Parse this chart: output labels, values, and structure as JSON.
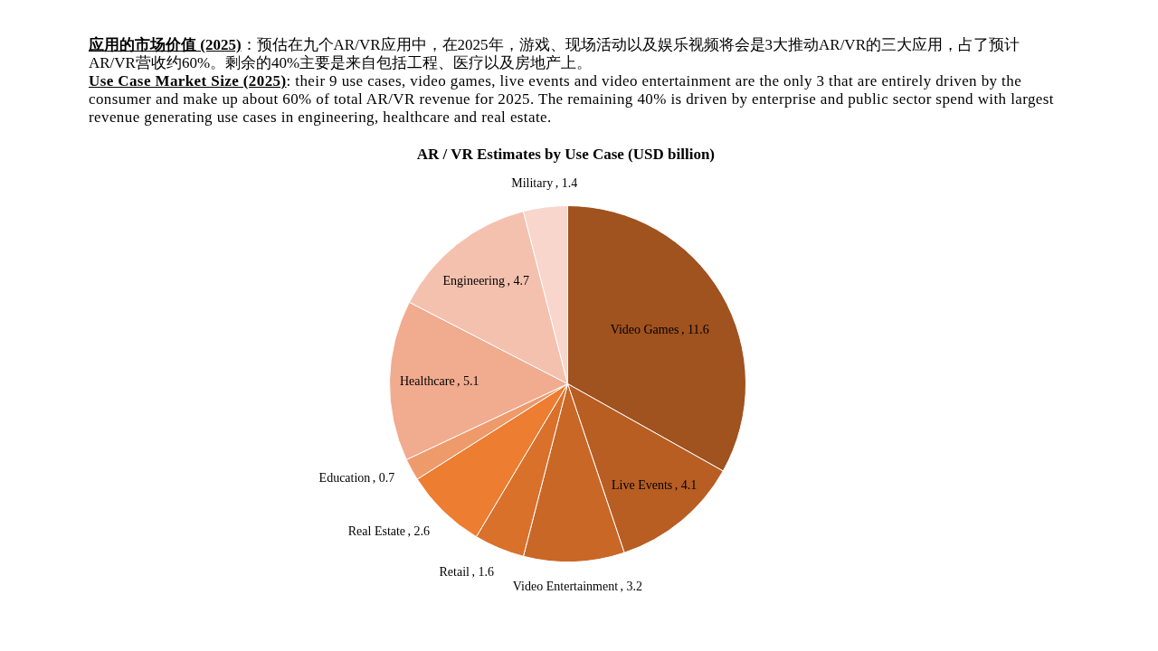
{
  "chart_data": {
    "type": "pie",
    "title": "AR / VR Estimates by Use Case (USD billion)",
    "subtitle": "应用的市场价值 (2025)：预估在九个AR/VR应用中，在2025年，游戏、现场活动以及娱乐视频将会是3大推动AR/VR的三大应用，占了预计AR/VR营收约60%。剩余的40%主要是来自包括工程、医疗以及房地产上。",
    "annotations": [
      "Use Case Market Size (2025): their 9 use cases, video games, live events and video entertainment are the only 3 that are entirely driven by the consumer and make up about 60% of total AR/VR revenue for 2025. The remaining 40% is driven by enterprise and public sector spend with largest revenue generating use cases in engineering, healthcare and real estate."
    ],
    "categories": [
      "Video Games",
      "Live Events",
      "Video Entertainment",
      "Retail",
      "Real Estate",
      "Education",
      "Healthcare",
      "Engineering",
      "Military"
    ],
    "values": [
      11.6,
      4.1,
      3.2,
      1.6,
      2.6,
      0.7,
      5.1,
      4.7,
      1.4
    ],
    "value_labels": [
      ", 11.6",
      ", 4.1",
      ", 3.2",
      ", 1.6",
      ", 2.6",
      ", 0.7",
      ", 5.1",
      ", 4.7",
      ", 1.4"
    ],
    "colors": [
      "#a0521f",
      "#b85e23",
      "#c96727",
      "#d9712b",
      "#ed7d31",
      "#ef9a6b",
      "#f1ab8f",
      "#f4c1af",
      "#f8d6cb"
    ]
  }
}
